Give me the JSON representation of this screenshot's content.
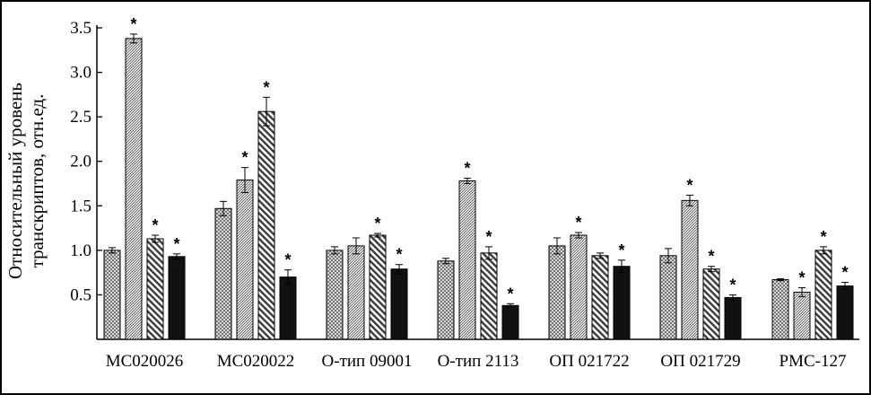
{
  "chart_data": {
    "type": "bar",
    "ylabel_lines": [
      "Относительный уровень",
      "транскриптов, отн.ед."
    ],
    "ylim": [
      0,
      3.5
    ],
    "yticks": [
      "0.5",
      "1.0",
      "1.5",
      "2.0",
      "2.5",
      "3.0",
      "3.5"
    ],
    "categories": [
      "МС020026",
      "МС020022",
      "О-тип 09001",
      "О-тип 2113",
      "ОП 021722",
      "ОП 021729",
      "РМС-127"
    ],
    "series_patterns": [
      "crosshatch",
      "dense-diagonal",
      "wide-diagonal",
      "solid-black"
    ],
    "series": [
      {
        "values": [
          1.0,
          1.47,
          1.0,
          0.88,
          1.05,
          0.94,
          0.67
        ],
        "errors": [
          0.03,
          0.08,
          0.04,
          0.03,
          0.09,
          0.08,
          0.01
        ],
        "significant": [
          false,
          false,
          false,
          false,
          false,
          false,
          false
        ]
      },
      {
        "values": [
          3.38,
          1.79,
          1.05,
          1.78,
          1.17,
          1.56,
          0.53
        ],
        "errors": [
          0.05,
          0.14,
          0.09,
          0.03,
          0.03,
          0.06,
          0.05
        ],
        "significant": [
          true,
          true,
          false,
          true,
          true,
          true,
          true
        ]
      },
      {
        "values": [
          1.13,
          2.56,
          1.17,
          0.97,
          0.94,
          0.79,
          1.0
        ],
        "errors": [
          0.04,
          0.16,
          0.02,
          0.07,
          0.03,
          0.03,
          0.04
        ],
        "significant": [
          true,
          true,
          true,
          true,
          false,
          true,
          true
        ]
      },
      {
        "values": [
          0.93,
          0.7,
          0.79,
          0.38,
          0.82,
          0.47,
          0.6
        ],
        "errors": [
          0.03,
          0.08,
          0.05,
          0.02,
          0.07,
          0.03,
          0.04
        ],
        "significant": [
          true,
          true,
          true,
          true,
          true,
          true,
          true
        ]
      }
    ],
    "significance_marker": "*",
    "grid": false,
    "legend": "none"
  }
}
